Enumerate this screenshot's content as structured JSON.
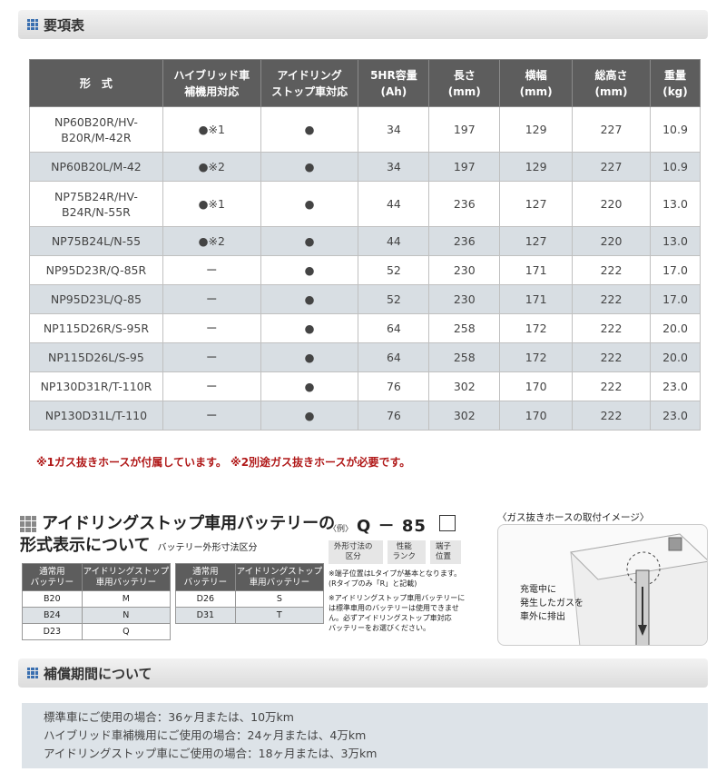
{
  "spec_header": {
    "title": "要項表"
  },
  "spec_table": {
    "headers": [
      [
        "形　式"
      ],
      [
        "ハイブリッド車",
        "補機用対応"
      ],
      [
        "アイドリング",
        "ストップ車対応"
      ],
      [
        "5HR容量",
        "(Ah)"
      ],
      [
        "長さ",
        "(mm)"
      ],
      [
        "横幅",
        "(mm)"
      ],
      [
        "総高さ",
        "(mm)"
      ],
      [
        "重量",
        "(kg)"
      ]
    ],
    "rows": [
      {
        "model": [
          "NP60B20R/HV-",
          "B20R/M-42R"
        ],
        "hybrid": "●※1",
        "idle": "●",
        "capacity": "34",
        "length": "197",
        "width": "129",
        "height": "227",
        "weight": "10.9"
      },
      {
        "model": [
          "NP60B20L/M-42"
        ],
        "hybrid": "●※2",
        "idle": "●",
        "capacity": "34",
        "length": "197",
        "width": "129",
        "height": "227",
        "weight": "10.9"
      },
      {
        "model": [
          "NP75B24R/HV-",
          "B24R/N-55R"
        ],
        "hybrid": "●※1",
        "idle": "●",
        "capacity": "44",
        "length": "236",
        "width": "127",
        "height": "220",
        "weight": "13.0"
      },
      {
        "model": [
          "NP75B24L/N-55"
        ],
        "hybrid": "●※2",
        "idle": "●",
        "capacity": "44",
        "length": "236",
        "width": "127",
        "height": "220",
        "weight": "13.0"
      },
      {
        "model": [
          "NP95D23R/Q-85R"
        ],
        "hybrid": "ー",
        "idle": "●",
        "capacity": "52",
        "length": "230",
        "width": "171",
        "height": "222",
        "weight": "17.0"
      },
      {
        "model": [
          "NP95D23L/Q-85"
        ],
        "hybrid": "ー",
        "idle": "●",
        "capacity": "52",
        "length": "230",
        "width": "171",
        "height": "222",
        "weight": "17.0"
      },
      {
        "model": [
          "NP115D26R/S-95R"
        ],
        "hybrid": "ー",
        "idle": "●",
        "capacity": "64",
        "length": "258",
        "width": "172",
        "height": "222",
        "weight": "20.0"
      },
      {
        "model": [
          "NP115D26L/S-95"
        ],
        "hybrid": "ー",
        "idle": "●",
        "capacity": "64",
        "length": "258",
        "width": "172",
        "height": "222",
        "weight": "20.0"
      },
      {
        "model": [
          "NP130D31R/T-110R"
        ],
        "hybrid": "ー",
        "idle": "●",
        "capacity": "76",
        "length": "302",
        "width": "170",
        "height": "222",
        "weight": "23.0"
      },
      {
        "model": [
          "NP130D31L/T-110"
        ],
        "hybrid": "ー",
        "idle": "●",
        "capacity": "76",
        "length": "302",
        "width": "170",
        "height": "222",
        "weight": "23.0"
      }
    ],
    "note": "※1ガス抜きホースが付属しています。 ※2別途ガス抜きホースが必要です。"
  },
  "idle_section": {
    "title_line1": "アイドリングストップ車用バッテリーの",
    "title_line2": "形式表示について",
    "subtitle": "バッテリー外形寸法区分",
    "table_left": {
      "headers": [
        [
          "通常用",
          "バッテリー"
        ],
        [
          "アイドリングストップ",
          "車用バッテリー"
        ]
      ],
      "rows": [
        [
          "B20",
          "M"
        ],
        [
          "B24",
          "N"
        ],
        [
          "D23",
          "Q"
        ]
      ]
    },
    "table_right": {
      "headers": [
        [
          "通常用",
          "バッテリー"
        ],
        [
          "アイドリングストップ",
          "車用バッテリー"
        ]
      ],
      "rows": [
        [
          "D26",
          "S"
        ],
        [
          "D31",
          "T"
        ]
      ]
    }
  },
  "example": {
    "prefix": "〈例〉",
    "code": "Q － 85",
    "labels": [
      [
        "外形寸法の",
        "区分"
      ],
      [
        "性能",
        "ランク"
      ],
      [
        "端子",
        "位置"
      ]
    ],
    "note1": [
      "※端子位置はLタイプが基本となります。",
      "(Rタイプのみ「R」と記載)"
    ],
    "note2": [
      "※アイドリングストップ車用バッテリーに",
      "は標準車用のバッテリーは使用できませ",
      "ん。必ずアイドリングストップ車対応",
      "バッテリーをお選びください。"
    ]
  },
  "hose": {
    "caption": "〈ガス抜きホースの取付イメージ〉",
    "text": [
      "充電中に",
      "発生したガスを",
      "車外に排出"
    ]
  },
  "warranty_header": {
    "title": "補償期間について"
  },
  "warranty": {
    "lines": [
      "標準車にご使用の場合：36ヶ月または、10万km",
      "ハイブリッド車補機用にご使用の場合：24ヶ月または、4万km",
      "アイドリングストップ車にご使用の場合：18ヶ月または、3万km"
    ]
  },
  "colors": {
    "header_bg": "#5d5d5d",
    "row_alt": "#d8dee3",
    "note_red": "#b01818",
    "icon_blue": "#3a6fb0"
  }
}
